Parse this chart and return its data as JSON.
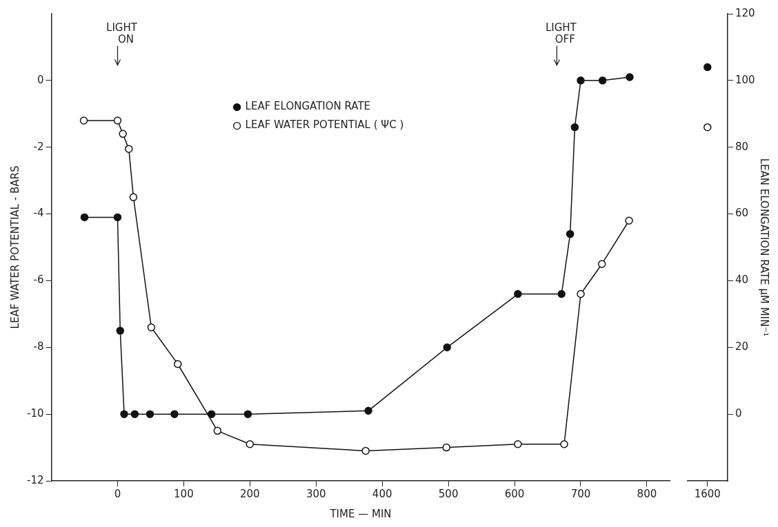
{
  "chart_data": [
    {
      "type": "line",
      "xlabel": "TIME — MIN",
      "ylabel": "LEAF WATER POTENTIAL - BARS",
      "xlim": [
        -100,
        835
      ],
      "xticks": [
        0,
        100,
        200,
        300,
        400,
        500,
        600,
        700,
        800
      ],
      "ylim": [
        -12,
        2
      ],
      "yticks": [
        -12,
        -10,
        -8,
        -6,
        -4,
        -2,
        0
      ],
      "y2lim": [
        -20,
        120
      ],
      "grid": false,
      "legend": "top left",
      "marker": "circle",
      "line_style": "solid",
      "series": [
        {
          "name": "LEAF ELONGATION RATE",
          "color": "#111111",
          "axis": "y2",
          "x": [
            -50,
            0,
            4,
            10,
            26,
            49,
            86,
            142,
            197,
            379,
            498,
            605,
            671,
            684,
            691,
            700,
            733,
            774
          ],
          "values": [
            59,
            59,
            25,
            0,
            0,
            0,
            0,
            0,
            0,
            1,
            20,
            36,
            36,
            54,
            86,
            100,
            100,
            101
          ]
        },
        {
          "name": "LEAF WATER POTENTIAL ( ΨC )",
          "color": "#111111",
          "axis": "y",
          "x": [
            -51,
            0,
            8,
            17,
            24,
            51,
            91,
            151,
            200,
            375,
            497,
            605,
            675,
            700,
            732,
            773
          ],
          "values": [
            -1.2,
            -1.2,
            -1.6,
            -2.05,
            -3.5,
            -7.4,
            -8.5,
            -10.5,
            -10.9,
            -11.1,
            -11.0,
            -10.9,
            -10.9,
            -6.4,
            -5.5,
            -4.2
          ]
        }
      ],
      "annotations": [
        "LIGHT ON",
        "LIGHT OFF"
      ]
    },
    {
      "type": "line",
      "y2label": "LEAN ELONGATION RATE μM MIN⁻¹",
      "categories": [
        "1600"
      ],
      "ylim": [
        -12,
        2
      ],
      "y2lim": [
        -20,
        120
      ],
      "y2ticks": [
        0,
        20,
        40,
        60,
        80,
        100,
        120
      ],
      "grid": false,
      "marker": "circle",
      "line_style": "solid",
      "series": [
        {
          "color": "#111111",
          "axis": "y2",
          "values": [
            104
          ]
        },
        {
          "color": "#111111",
          "axis": "y",
          "values": [
            -1.4
          ]
        }
      ]
    }
  ]
}
